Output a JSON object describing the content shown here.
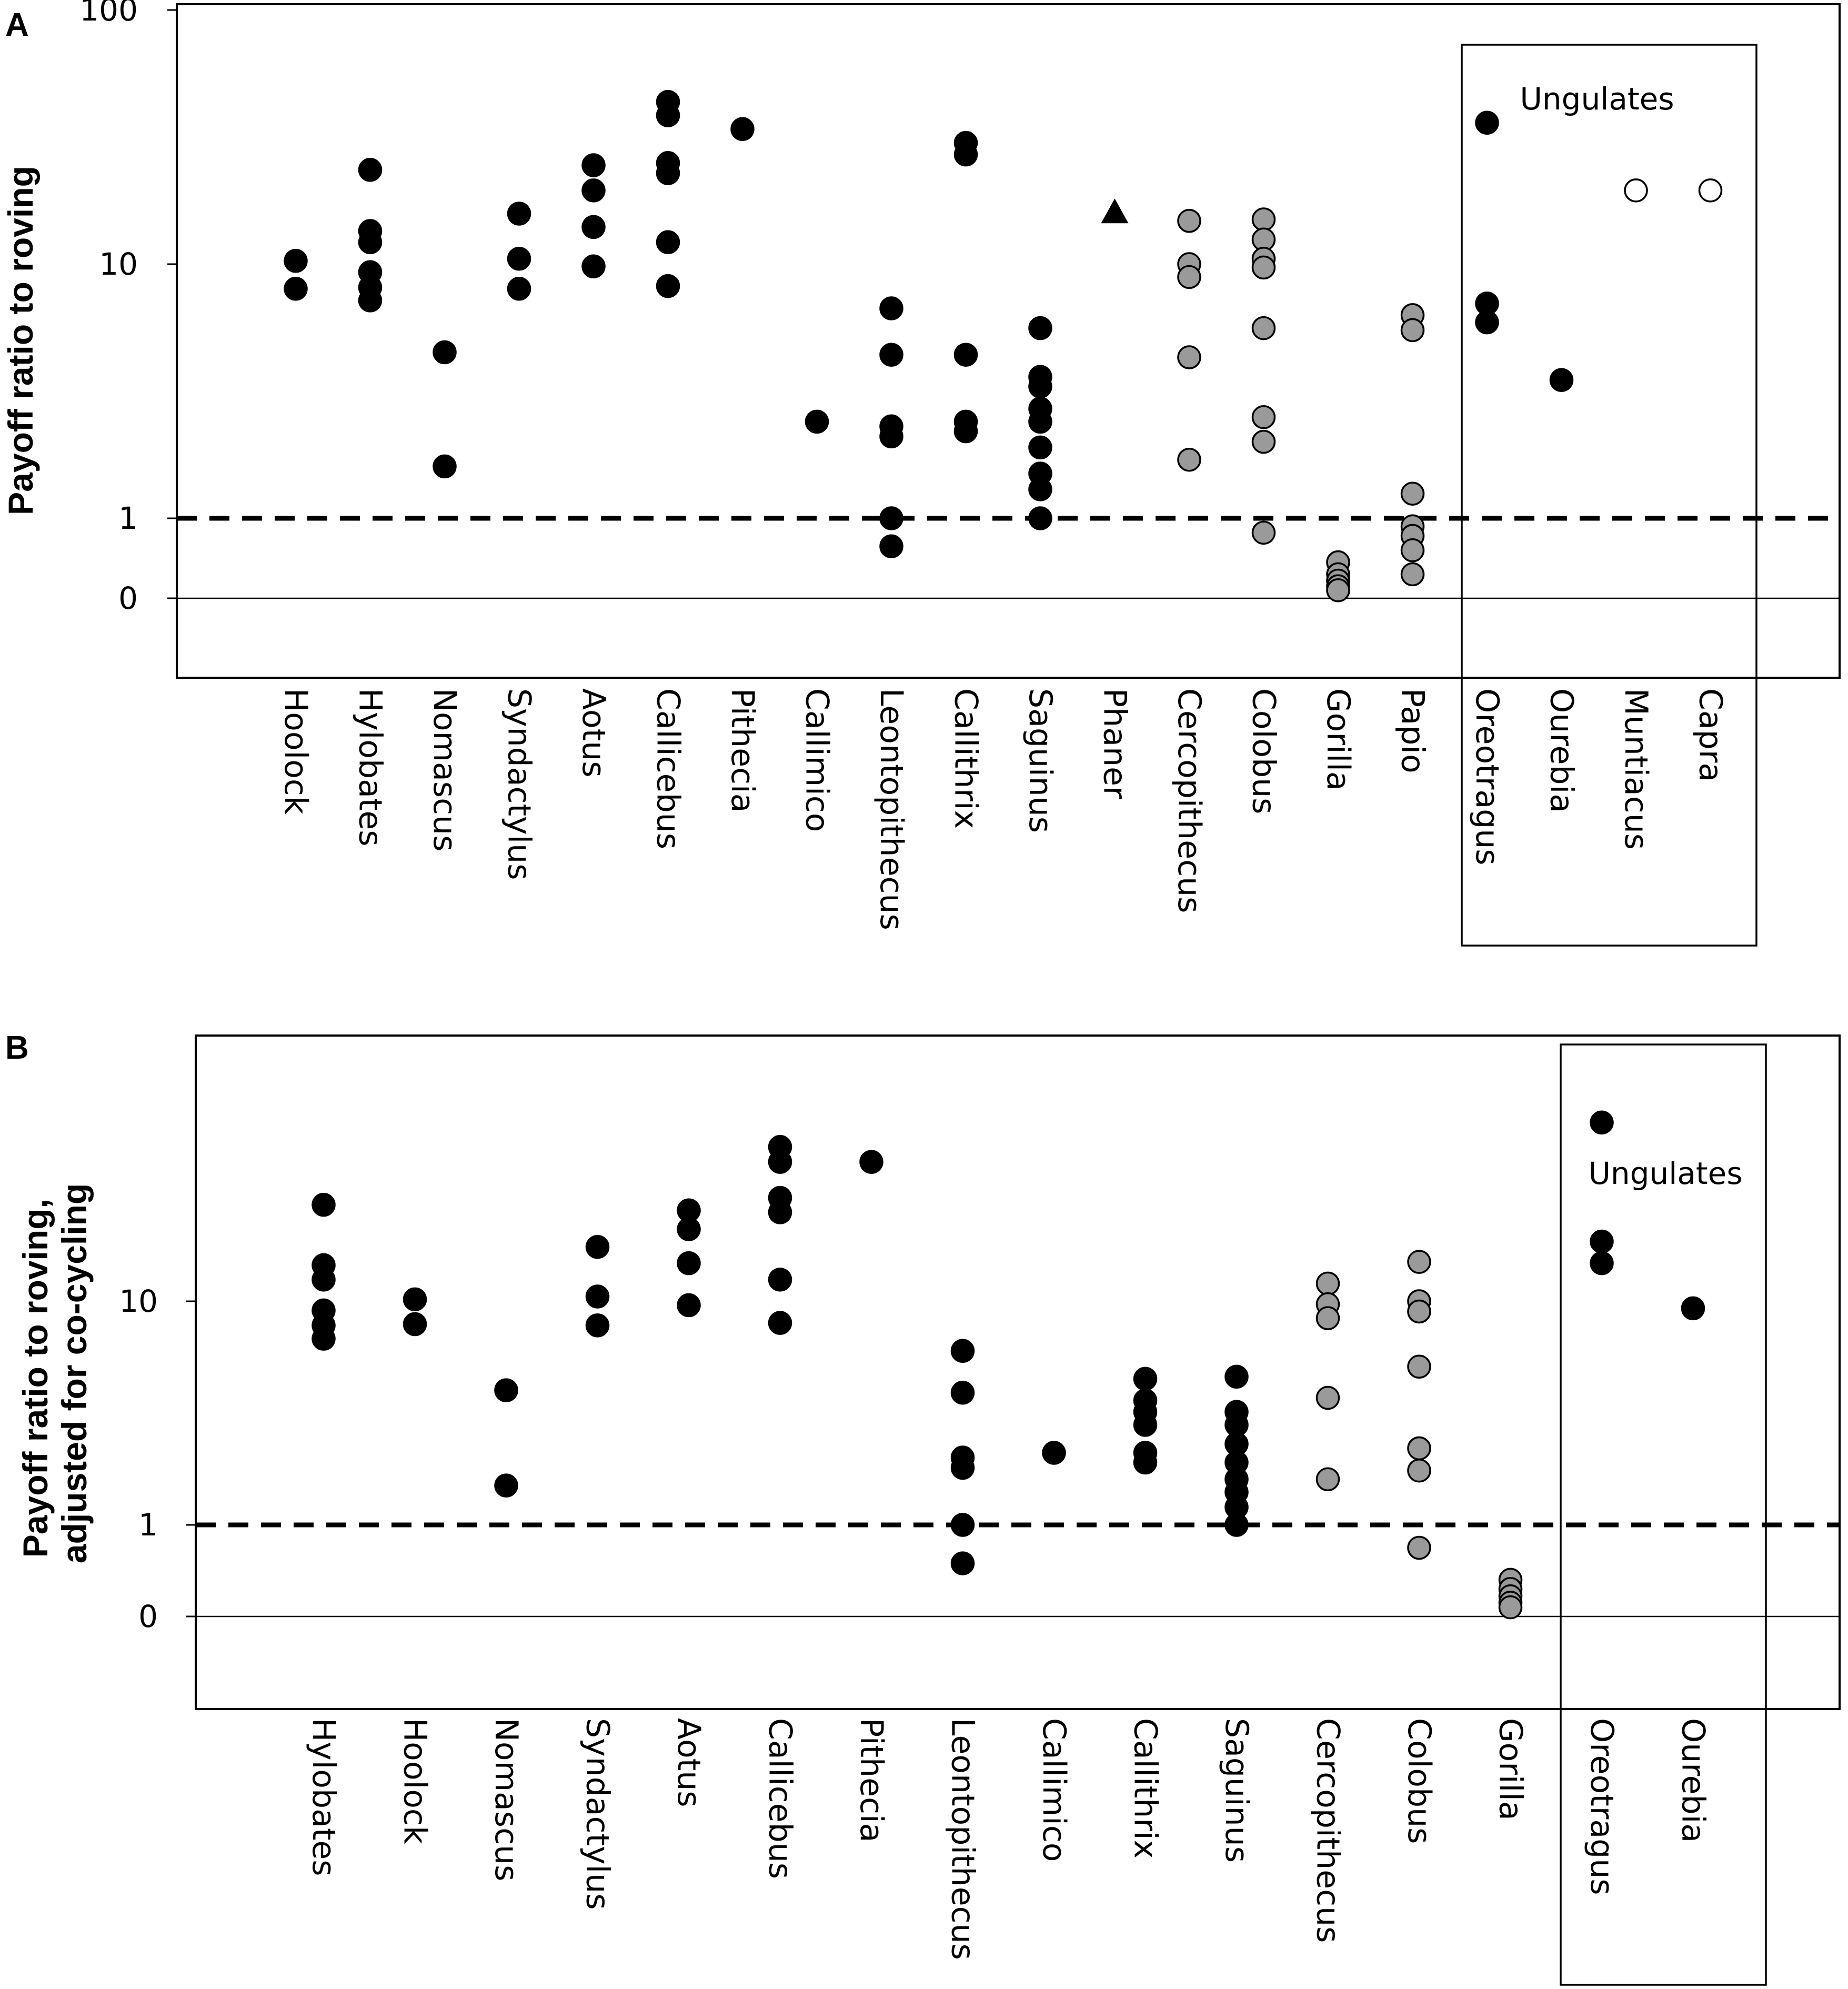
{
  "chart_data": [
    {
      "panel": "A",
      "type": "scatter",
      "ylabel": "Payoff ratio to roving",
      "yscale": "log-like (0 to 100)",
      "yticks": [
        "100",
        "10",
        "1",
        "0"
      ],
      "reference_line": {
        "y": 1,
        "style": "dashed"
      },
      "zero_line": {
        "y": 0,
        "style": "solid"
      },
      "group_box": {
        "label": "Ungulates",
        "categories": [
          "Oreotragus",
          "Ourebia",
          "Muntiacus",
          "Capra"
        ]
      },
      "categories": [
        "Hoolock",
        "Hylobates",
        "Nomascus",
        "Syndactylus",
        "Aotus",
        "Callicebus",
        "Pithecia",
        "Callimico",
        "Leontopithecus",
        "Callithrix",
        "Saguinus",
        "Phaner",
        "Cercopithecus",
        "Colobus",
        "Gorilla",
        "Papio",
        "Oreotragus",
        "Ourebia",
        "Muntiacus",
        "Capra"
      ],
      "points": [
        {
          "category": "Hoolock",
          "marker": "black-circle",
          "values": [
            10.3,
            8.0
          ]
        },
        {
          "category": "Hylobates",
          "marker": "black-circle",
          "values": [
            23.5,
            13.5,
            12.2,
            9.3,
            8.1,
            7.2
          ]
        },
        {
          "category": "Nomascus",
          "marker": "black-circle",
          "values": [
            4.5,
            1.6
          ]
        },
        {
          "category": "Syndactylus",
          "marker": "black-circle",
          "values": [
            15.8,
            10.5,
            8.0
          ]
        },
        {
          "category": "Aotus",
          "marker": "black-circle",
          "values": [
            24.5,
            19.5,
            14.0,
            9.8
          ]
        },
        {
          "category": "Callicebus",
          "marker": "black-circle",
          "values": [
            43.5,
            38.5,
            25.0,
            22.8,
            12.2,
            8.2
          ]
        },
        {
          "category": "Pithecia",
          "marker": "black-circle",
          "values": [
            34.0
          ]
        },
        {
          "category": "Callimico",
          "marker": "black-circle",
          "values": [
            2.4
          ]
        },
        {
          "category": "Leontopithecus",
          "marker": "black-circle",
          "values": [
            6.7,
            4.4,
            2.3,
            2.1,
            1.0,
            0.65
          ]
        },
        {
          "category": "Callithrix",
          "marker": "black-circle",
          "values": [
            30.0,
            27.0,
            4.4,
            2.4,
            2.2
          ]
        },
        {
          "category": "Saguinus",
          "marker": "black-circle",
          "values": [
            5.6,
            3.6,
            3.3,
            2.7,
            2.4,
            1.9,
            1.5,
            1.3,
            1.0
          ]
        },
        {
          "category": "Phaner",
          "marker": "black-triangle",
          "values": [
            16.0
          ]
        },
        {
          "category": "Cercopithecus",
          "marker": "gray-circle",
          "values": [
            14.8,
            10.0,
            8.9,
            4.3,
            1.7
          ]
        },
        {
          "category": "Colobus",
          "marker": "gray-circle",
          "values": [
            15.0,
            12.5,
            10.5,
            9.7,
            5.6,
            2.5,
            2.0,
            0.82
          ]
        },
        {
          "category": "Gorilla",
          "marker": "gray-circle",
          "values": [
            0.45,
            0.3,
            0.22,
            0.15,
            0.1
          ]
        },
        {
          "category": "Papio",
          "marker": "gray-circle",
          "values": [
            6.3,
            5.5,
            1.25,
            0.9,
            0.78,
            0.6,
            0.3
          ]
        },
        {
          "category": "Oreotragus",
          "marker": "black-circle",
          "values": [
            36.0,
            7.0,
            5.9
          ]
        },
        {
          "category": "Ourebia",
          "marker": "black-circle",
          "values": [
            3.5
          ]
        },
        {
          "category": "Muntiacus",
          "marker": "white-circle",
          "values": [
            19.5
          ]
        },
        {
          "category": "Capra",
          "marker": "white-circle",
          "values": [
            19.5
          ]
        }
      ]
    },
    {
      "panel": "B",
      "type": "scatter",
      "ylabel": "Payoff ratio to roving, adjusted for co-cycling",
      "ylabel_lines": [
        "Payoff ratio to roving,",
        "adjusted for co-cycling"
      ],
      "yscale": "log-like (0 to 100)",
      "yticks": [
        "10",
        "1",
        "0"
      ],
      "reference_line": {
        "y": 1,
        "style": "dashed"
      },
      "zero_line": {
        "y": 0,
        "style": "solid"
      },
      "group_box": {
        "label": "Ungulates",
        "categories": [
          "Oreotragus",
          "Ourebia"
        ]
      },
      "categories": [
        "Hylobates",
        "Hoolock",
        "Nomascus",
        "Syndactylus",
        "Aotus",
        "Callicebus",
        "Pithecia",
        "Leontopithecus",
        "Callimico",
        "Callithrix",
        "Saguinus",
        "Cercopithecus",
        "Colobus",
        "Gorilla",
        "Oreotragus",
        "Ourebia"
      ],
      "points": [
        {
          "category": "Hylobates",
          "marker": "black-circle",
          "values": [
            27.0,
            14.5,
            12.5,
            9.1,
            7.8,
            6.8
          ]
        },
        {
          "category": "Hoolock",
          "marker": "black-circle",
          "values": [
            10.2,
            7.9
          ]
        },
        {
          "category": "Nomascus",
          "marker": "black-circle",
          "values": [
            4.0,
            1.5
          ]
        },
        {
          "category": "Syndactylus",
          "marker": "black-circle",
          "values": [
            17.5,
            10.5,
            7.8
          ]
        },
        {
          "category": "Aotus",
          "marker": "black-circle",
          "values": [
            25.5,
            21.0,
            14.8,
            9.6
          ]
        },
        {
          "category": "Callicebus",
          "marker": "black-circle",
          "values": [
            49.0,
            42.0,
            29.0,
            25.0,
            12.5,
            8.0
          ]
        },
        {
          "category": "Pithecia",
          "marker": "black-circle",
          "values": [
            42.0
          ]
        },
        {
          "category": "Leontopithecus",
          "marker": "black-circle",
          "values": [
            6.0,
            3.9,
            2.0,
            1.8,
            1.0,
            0.58
          ]
        },
        {
          "category": "Callimico",
          "marker": "black-circle",
          "values": [
            2.1
          ]
        },
        {
          "category": "Callithrix",
          "marker": "black-circle",
          "values": [
            4.5,
            3.6,
            3.2,
            2.8,
            2.1,
            1.9
          ]
        },
        {
          "category": "Saguinus",
          "marker": "black-circle",
          "values": [
            4.6,
            3.2,
            2.8,
            2.3,
            1.9,
            1.6,
            1.4,
            1.2,
            1.0
          ]
        },
        {
          "category": "Cercopithecus",
          "marker": "gray-circle",
          "values": [
            12.0,
            9.7,
            8.4,
            3.7,
            1.6
          ]
        },
        {
          "category": "Colobus",
          "marker": "gray-circle",
          "values": [
            15.0,
            10.0,
            9.0,
            5.1,
            2.2,
            1.75,
            0.75
          ]
        },
        {
          "category": "Gorilla",
          "marker": "gray-circle",
          "values": [
            0.4,
            0.3,
            0.22,
            0.15,
            0.1
          ]
        },
        {
          "category": "Oreotragus",
          "marker": "black-circle",
          "values": [
            63.0,
            18.5,
            14.8
          ]
        },
        {
          "category": "Ourebia",
          "marker": "black-circle",
          "values": [
            9.3
          ]
        }
      ]
    }
  ]
}
